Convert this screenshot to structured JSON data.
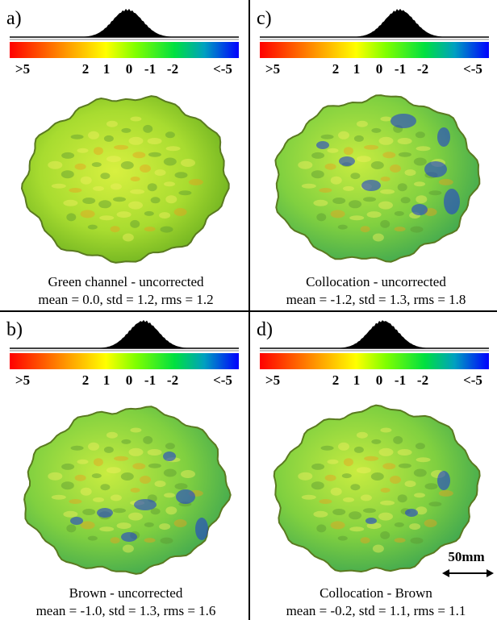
{
  "panels": [
    {
      "label": "a)",
      "colorbar_labels": [
        ">5",
        "2",
        "1",
        "0",
        "-1",
        "-2",
        "<-5"
      ],
      "caption": "Green channel - uncorrected",
      "stats": "mean = 0.0, std = 1.2, rms = 1.2"
    },
    {
      "label": "b)",
      "colorbar_labels": [
        ">5",
        "2",
        "1",
        "0",
        "-1",
        "-2",
        "<-5"
      ],
      "caption": "Brown - uncorrected",
      "stats": "mean = -1.0, std = 1.3, rms = 1.6"
    },
    {
      "label": "c)",
      "colorbar_labels": [
        ">5",
        "2",
        "1",
        "0",
        "-1",
        "-2",
        "<-5"
      ],
      "caption": "Collocation - uncorrected",
      "stats": "mean = -1.2, std = 1.3, rms = 1.8"
    },
    {
      "label": "d)",
      "colorbar_labels": [
        ">5",
        "2",
        "1",
        "0",
        "-1",
        "-2",
        "<-5"
      ],
      "caption": "Collocation - Brown",
      "stats": "mean = -0.2, std = 1.1, rms = 1.1"
    }
  ],
  "scale_bar": "50mm"
}
